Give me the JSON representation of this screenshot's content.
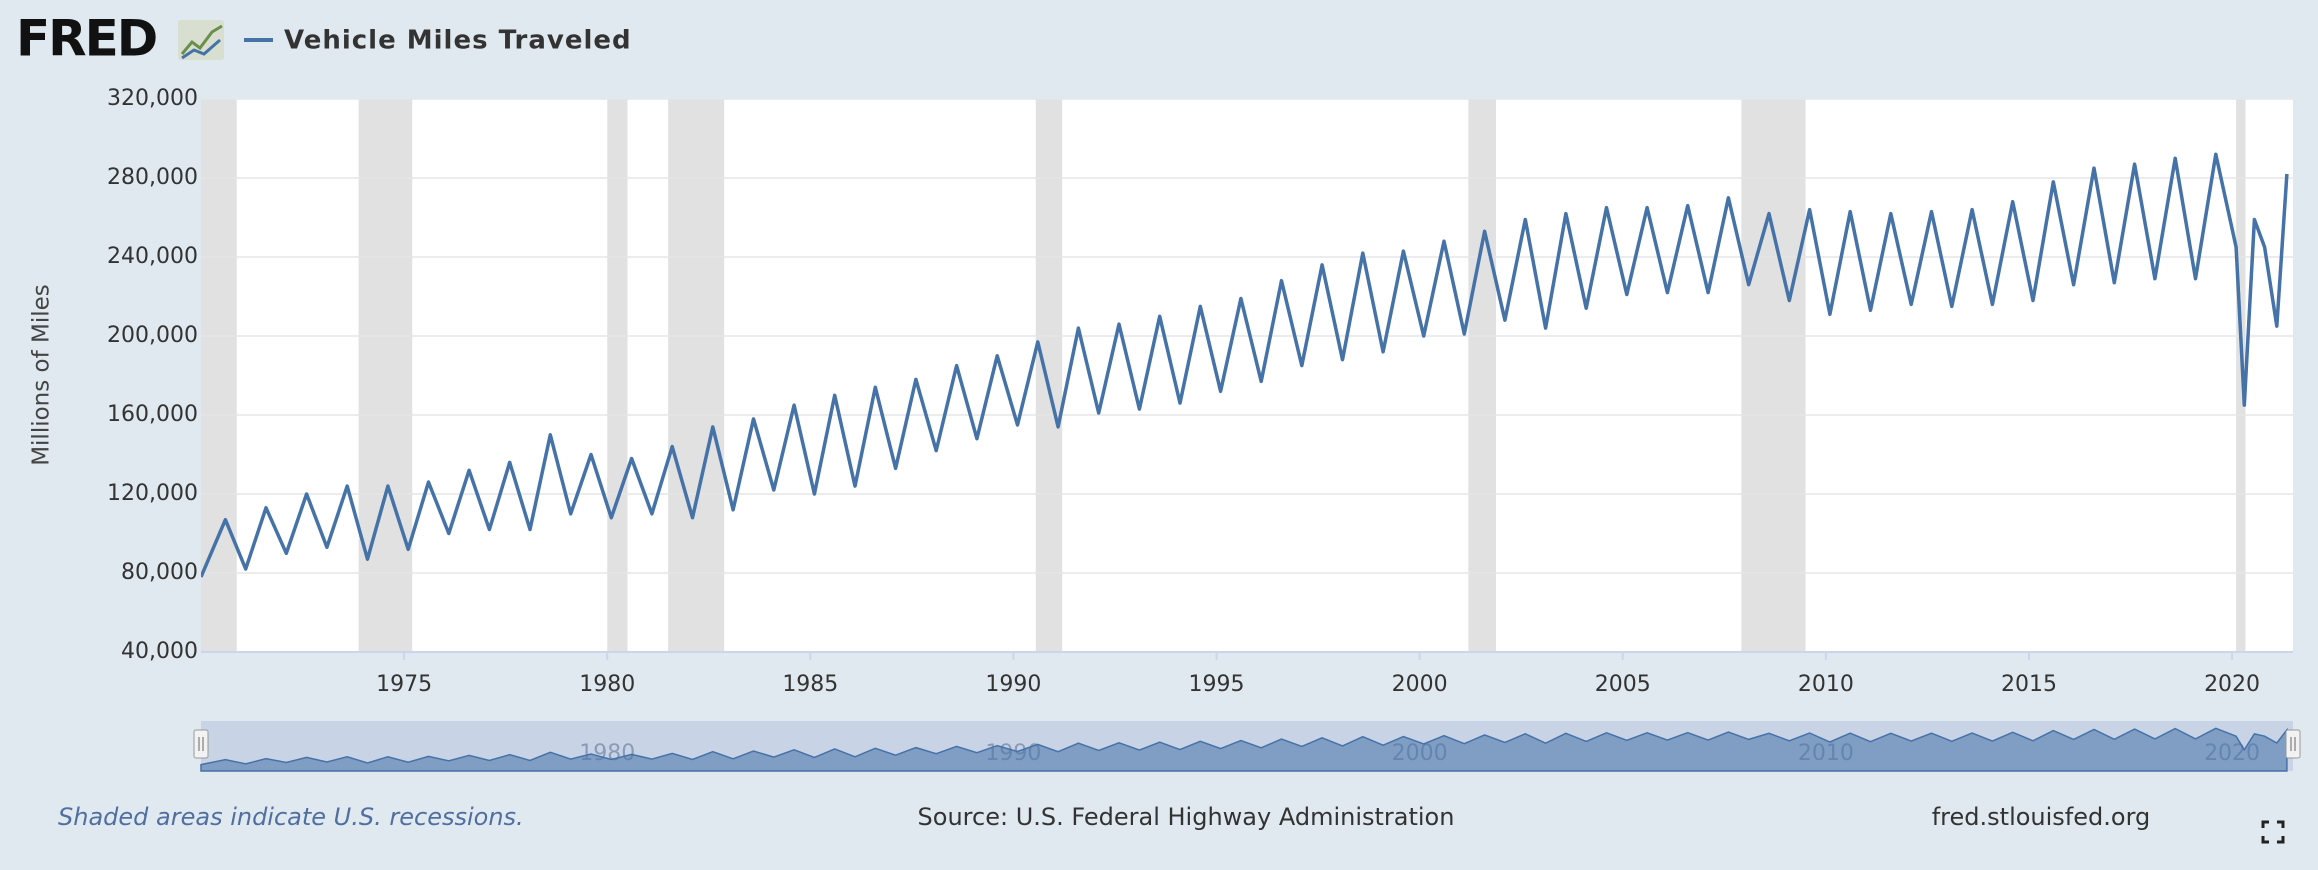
{
  "logo": "FRED",
  "chart_data": {
    "type": "line",
    "y_label": "Millions of Miles",
    "footer_note": "Shaded areas indicate U.S. recessions.",
    "source": "Source: U.S. Federal Highway Administration",
    "site": "fred.stlouisfed.org",
    "x": [
      1970.0,
      1970.6,
      1971.1,
      1971.6,
      1972.1,
      1972.6,
      1973.1,
      1973.6,
      1974.1,
      1974.6,
      1975.1,
      1975.6,
      1976.1,
      1976.6,
      1977.1,
      1977.6,
      1978.1,
      1978.6,
      1979.1,
      1979.6,
      1980.1,
      1980.6,
      1981.1,
      1981.6,
      1982.1,
      1982.6,
      1983.1,
      1983.6,
      1984.1,
      1984.6,
      1985.1,
      1985.6,
      1986.1,
      1986.6,
      1987.1,
      1987.6,
      1988.1,
      1988.6,
      1989.1,
      1989.6,
      1990.1,
      1990.6,
      1991.1,
      1991.6,
      1992.1,
      1992.6,
      1993.1,
      1993.6,
      1994.1,
      1994.6,
      1995.1,
      1995.6,
      1996.1,
      1996.6,
      1997.1,
      1997.6,
      1998.1,
      1998.6,
      1999.1,
      1999.6,
      2000.1,
      2000.6,
      2001.1,
      2001.6,
      2002.1,
      2002.6,
      2003.1,
      2003.6,
      2004.1,
      2004.6,
      2005.1,
      2005.6,
      2006.1,
      2006.6,
      2007.1,
      2007.6,
      2008.1,
      2008.6,
      2009.1,
      2009.6,
      2010.1,
      2010.6,
      2011.1,
      2011.6,
      2012.1,
      2012.6,
      2013.1,
      2013.6,
      2014.1,
      2014.6,
      2015.1,
      2015.6,
      2016.1,
      2016.6,
      2017.1,
      2017.6,
      2018.1,
      2018.6,
      2019.1,
      2019.6,
      2020.1,
      2020.3,
      2020.55,
      2020.8,
      2021.1,
      2021.35
    ],
    "series": [
      {
        "name": "Vehicle Miles Traveled",
        "color": "#4572a7",
        "values": [
          78000,
          107000,
          82000,
          113000,
          90000,
          120000,
          93000,
          124000,
          87000,
          124000,
          92000,
          126000,
          100000,
          132000,
          102000,
          136000,
          102000,
          150000,
          110000,
          140000,
          108000,
          138000,
          110000,
          144000,
          108000,
          154000,
          112000,
          158000,
          122000,
          165000,
          120000,
          170000,
          124000,
          174000,
          133000,
          178000,
          142000,
          185000,
          148000,
          190000,
          155000,
          197000,
          154000,
          204000,
          161000,
          206000,
          163000,
          210000,
          166000,
          215000,
          172000,
          219000,
          177000,
          228000,
          185000,
          236000,
          188000,
          242000,
          192000,
          243000,
          200000,
          248000,
          201000,
          253000,
          208000,
          259000,
          204000,
          262000,
          214000,
          265000,
          221000,
          265000,
          222000,
          266000,
          222000,
          270000,
          226000,
          262000,
          218000,
          264000,
          211000,
          263000,
          213000,
          262000,
          216000,
          263000,
          215000,
          264000,
          216000,
          268000,
          218000,
          278000,
          226000,
          285000,
          227000,
          287000,
          229000,
          290000,
          229000,
          292000,
          245000,
          165000,
          259000,
          245000,
          205000,
          282000
        ]
      }
    ],
    "recessions": [
      [
        1969.92,
        1970.88
      ],
      [
        1973.88,
        1975.2
      ],
      [
        1980.0,
        1980.5
      ],
      [
        1981.5,
        1982.88
      ],
      [
        1990.55,
        1991.2
      ],
      [
        2001.2,
        2001.88
      ],
      [
        2007.92,
        2009.5
      ],
      [
        2020.1,
        2020.33
      ]
    ],
    "recession_color": "#e1e1e1",
    "xlim": [
      1970,
      2021.5
    ],
    "xticks": [
      1975,
      1980,
      1985,
      1990,
      1995,
      2000,
      2005,
      2010,
      2015,
      2020
    ],
    "ylim": [
      40000,
      320000
    ],
    "yticks": [
      {
        "value": 40000,
        "label": "40,000"
      },
      {
        "value": 80000,
        "label": "80,000"
      },
      {
        "value": 120000,
        "label": "120,000"
      },
      {
        "value": 160000,
        "label": "160,000"
      },
      {
        "value": 200000,
        "label": "200,000"
      },
      {
        "value": 240000,
        "label": "240,000"
      },
      {
        "value": 280000,
        "label": "280,000"
      },
      {
        "value": 320000,
        "label": "320,000"
      }
    ],
    "grid": true,
    "navigator_xticks": [
      1980,
      1990,
      2000,
      2010,
      2020
    ]
  }
}
